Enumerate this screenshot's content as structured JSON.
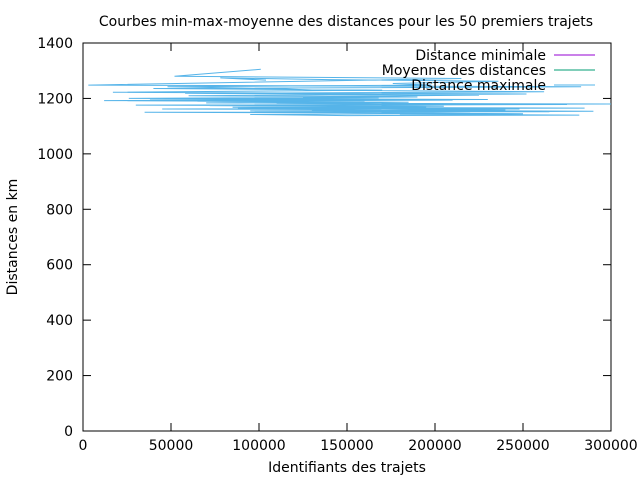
{
  "chart_data": {
    "type": "line",
    "title": "Courbes min-max-moyenne des distances pour les 50 premiers trajets",
    "xlabel": "Identifiants des trajets",
    "ylabel": "Distances en km",
    "xlim": [
      0,
      300000
    ],
    "ylim": [
      0,
      1400
    ],
    "xticks": [
      0,
      50000,
      100000,
      150000,
      200000,
      250000,
      300000
    ],
    "yticks": [
      0,
      200,
      400,
      600,
      800,
      1000,
      1200,
      1400
    ],
    "xtick_labels": [
      "0",
      "50000",
      "100000",
      "150000",
      "200000",
      "250000",
      "300000"
    ],
    "ytick_labels": [
      "0",
      "200",
      "400",
      "600",
      "800",
      "1000",
      "1200",
      "1400"
    ],
    "grid": false,
    "legend_position": "top-right",
    "series": [
      {
        "name": "Distance minimale",
        "color": "#9400d3",
        "points": []
      },
      {
        "name": "Moyenne des distances",
        "color": "#009e73",
        "points": []
      },
      {
        "name": "Distance maximale",
        "color": "#56b4e9",
        "points": [
          [
            101000,
            1305
          ],
          [
            52000,
            1280
          ],
          [
            215000,
            1272
          ],
          [
            3000,
            1248
          ],
          [
            283000,
            1242
          ],
          [
            40000,
            1236
          ],
          [
            170000,
            1230
          ],
          [
            17000,
            1222
          ],
          [
            252000,
            1216
          ],
          [
            60000,
            1210
          ],
          [
            190000,
            1205
          ],
          [
            26000,
            1200
          ],
          [
            230000,
            1196
          ],
          [
            12000,
            1192
          ],
          [
            160000,
            1188
          ],
          [
            70000,
            1184
          ],
          [
            300000,
            1180
          ],
          [
            30000,
            1176
          ],
          [
            205000,
            1172
          ],
          [
            85000,
            1168
          ],
          [
            285000,
            1165
          ],
          [
            45000,
            1162
          ],
          [
            240000,
            1158
          ],
          [
            95000,
            1155
          ],
          [
            265000,
            1152
          ],
          [
            35000,
            1150
          ],
          [
            145000,
            1148
          ],
          [
            250000,
            1145
          ],
          [
            180000,
            1143
          ],
          [
            282000,
            1140
          ],
          [
            150000,
            1138
          ],
          [
            95000,
            1142
          ],
          [
            220000,
            1146
          ],
          [
            155000,
            1150
          ],
          [
            290000,
            1154
          ],
          [
            130000,
            1158
          ],
          [
            248000,
            1162
          ],
          [
            88000,
            1166
          ],
          [
            195000,
            1170
          ],
          [
            72000,
            1174
          ],
          [
            275000,
            1178
          ],
          [
            110000,
            1182
          ],
          [
            185000,
            1186
          ],
          [
            65000,
            1190
          ],
          [
            210000,
            1194
          ],
          [
            38000,
            1198
          ],
          [
            168000,
            1202
          ],
          [
            125000,
            1206
          ],
          [
            225000,
            1212
          ],
          [
            58000,
            1218
          ],
          [
            262000,
            1224
          ],
          [
            132000,
            1230
          ],
          [
            108000,
            1236
          ],
          [
            48000,
            1242
          ],
          [
            198000,
            1248
          ],
          [
            176000,
            1254
          ],
          [
            236000,
            1262
          ],
          [
            140000,
            1268
          ],
          [
            78000,
            1274
          ],
          [
            104000,
            1266
          ]
        ]
      }
    ]
  }
}
